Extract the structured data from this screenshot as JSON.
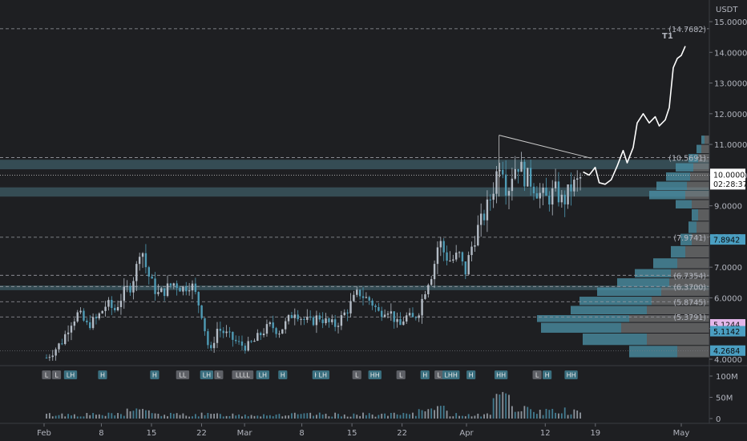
{
  "chart_data": {
    "type": "candlestick",
    "quote_currency": "USDT",
    "colors": {
      "background": "#1e1f22",
      "up": "#b4bcc6",
      "down": "#4f9bb5",
      "zone": "#3d5c66",
      "profile_light": "#4a8da3",
      "profile_grey": "#8f8f8f",
      "highlight_tag": "#e3b6e9",
      "projection": "#ffffff"
    },
    "y_axis": {
      "range": [
        3.95,
        15.4
      ],
      "ticks": [
        "4.0000",
        "5.0000",
        "6.0000",
        "7.0000",
        "8.0000",
        "9.0000",
        "10.0000",
        "11.0000",
        "12.0000",
        "13.0000",
        "14.0000",
        "15.0000"
      ]
    },
    "x_axis": {
      "labels": [
        "Feb",
        "8",
        "15",
        "22",
        "Mar",
        "8",
        "15",
        "22",
        "Apr",
        "12",
        "19",
        "May"
      ]
    },
    "price_tags": {
      "last_price": "10.0000",
      "countdown": "02:28:37",
      "tag_1": "7.8942",
      "tag_2": "5.1244",
      "tag_3": "5.1142",
      "tag_4": "4.2684"
    },
    "target_label": "T1",
    "levels": [
      {
        "label": "(14.7682)",
        "value": 14.7682
      },
      {
        "label": "(10.5691)",
        "value": 10.5691
      },
      {
        "label": "(7.9741)",
        "value": 7.9741
      },
      {
        "label": "(6.7354)",
        "value": 6.7354
      },
      {
        "label": "(6.3700)",
        "value": 6.37
      },
      {
        "label": "(5.8745)",
        "value": 5.8745
      },
      {
        "label": "(5.3791)",
        "value": 5.3791
      }
    ],
    "zones": [
      [
        10.19,
        10.5
      ],
      [
        9.3,
        9.6
      ],
      [
        6.25,
        6.4
      ]
    ],
    "price_path": [
      [
        0,
        4.05
      ],
      [
        4,
        4.3
      ],
      [
        8,
        4.6
      ],
      [
        12,
        5.2
      ],
      [
        16,
        5.5
      ],
      [
        20,
        5.1
      ],
      [
        25,
        5.3
      ],
      [
        30,
        5.8
      ],
      [
        34,
        5.6
      ],
      [
        38,
        6.1
      ],
      [
        42,
        6.4
      ],
      [
        45,
        7.0
      ],
      [
        47,
        7.8
      ],
      [
        50,
        6.9
      ],
      [
        53,
        6.4
      ],
      [
        56,
        6.1
      ],
      [
        60,
        6.3
      ],
      [
        64,
        6.5
      ],
      [
        68,
        6.3
      ],
      [
        72,
        6.5
      ],
      [
        75,
        6.0
      ],
      [
        78,
        5.4
      ],
      [
        80,
        4.6
      ],
      [
        82,
        4.2
      ],
      [
        85,
        5.0
      ],
      [
        88,
        4.9
      ],
      [
        92,
        4.7
      ],
      [
        96,
        4.5
      ],
      [
        100,
        4.4
      ],
      [
        104,
        4.6
      ],
      [
        108,
        4.9
      ],
      [
        112,
        5.1
      ],
      [
        116,
        4.9
      ],
      [
        120,
        5.2
      ],
      [
        124,
        5.6
      ],
      [
        128,
        5.3
      ],
      [
        132,
        5.2
      ],
      [
        136,
        5.4
      ],
      [
        140,
        5.2
      ],
      [
        144,
        5.1
      ],
      [
        148,
        5.4
      ],
      [
        152,
        5.8
      ],
      [
        156,
        6.2
      ],
      [
        159,
        6.0
      ],
      [
        162,
        5.9
      ],
      [
        166,
        5.5
      ],
      [
        170,
        5.7
      ],
      [
        174,
        5.3
      ],
      [
        176,
        5.0
      ],
      [
        179,
        5.4
      ],
      [
        183,
        5.3
      ],
      [
        186,
        5.6
      ],
      [
        190,
        6.5
      ],
      [
        193,
        6.9
      ],
      [
        196,
        7.9
      ],
      [
        199,
        7.4
      ],
      [
        202,
        7.2
      ],
      [
        206,
        7.4
      ],
      [
        209,
        6.8
      ],
      [
        212,
        7.6
      ],
      [
        215,
        8.2
      ],
      [
        218,
        8.6
      ],
      [
        221,
        9.1
      ],
      [
        224,
        9.8
      ],
      [
        226,
        10.5
      ],
      [
        228,
        10.3
      ],
      [
        230,
        9.4
      ],
      [
        233,
        10.2
      ],
      [
        236,
        10.4
      ],
      [
        238,
        10.0
      ],
      [
        242,
        9.8
      ],
      [
        246,
        9.4
      ],
      [
        250,
        9.2
      ],
      [
        254,
        9.5
      ],
      [
        258,
        9.1
      ],
      [
        262,
        9.6
      ],
      [
        266,
        9.8
      ],
      [
        268,
        10.1
      ]
    ],
    "projection_path": [
      [
        268,
        10.1
      ],
      [
        271,
        10.0
      ],
      [
        274,
        10.25
      ],
      [
        276,
        9.75
      ],
      [
        279,
        9.7
      ],
      [
        282,
        9.85
      ],
      [
        285,
        10.3
      ],
      [
        288,
        10.8
      ],
      [
        290,
        10.4
      ],
      [
        293,
        10.9
      ],
      [
        295,
        11.7
      ],
      [
        298,
        12.0
      ],
      [
        301,
        11.7
      ],
      [
        304,
        11.9
      ],
      [
        306,
        11.6
      ],
      [
        309,
        11.8
      ],
      [
        311,
        12.2
      ],
      [
        313,
        13.5
      ],
      [
        315,
        13.8
      ],
      [
        317,
        13.9
      ],
      [
        319,
        14.2
      ]
    ],
    "triangle": {
      "start": [
        226,
        11.3
      ],
      "end": [
        272,
        10.55
      ]
    },
    "day_span": 319,
    "volume_axis": {
      "labels": [
        "100M",
        "50M",
        "0"
      ],
      "values": [
        100,
        50,
        0
      ]
    },
    "volume_markers": [
      {
        "label": "L",
        "x": 0
      },
      {
        "label": "L",
        "x": 5
      },
      {
        "label": "LH",
        "x": 12
      },
      {
        "label": "H",
        "x": 28
      },
      {
        "label": "H",
        "x": 54
      },
      {
        "label": "LL",
        "x": 68
      },
      {
        "label": "LH",
        "x": 80
      },
      {
        "label": "L",
        "x": 86
      },
      {
        "label": "LLLL",
        "x": 98
      },
      {
        "label": "LH",
        "x": 108
      },
      {
        "label": "H",
        "x": 118
      },
      {
        "label": "H",
        "x": 135
      },
      {
        "label": "LH",
        "x": 138
      },
      {
        "label": "L",
        "x": 155
      },
      {
        "label": "HH",
        "x": 164
      },
      {
        "label": "L",
        "x": 177
      },
      {
        "label": "H",
        "x": 189
      },
      {
        "label": "L",
        "x": 196
      },
      {
        "label": "LHH",
        "x": 202
      },
      {
        "label": "H",
        "x": 212
      },
      {
        "label": "HH",
        "x": 227
      },
      {
        "label": "L",
        "x": 245
      },
      {
        "label": "H",
        "x": 250
      },
      {
        "label": "HH",
        "x": 262
      }
    ]
  }
}
